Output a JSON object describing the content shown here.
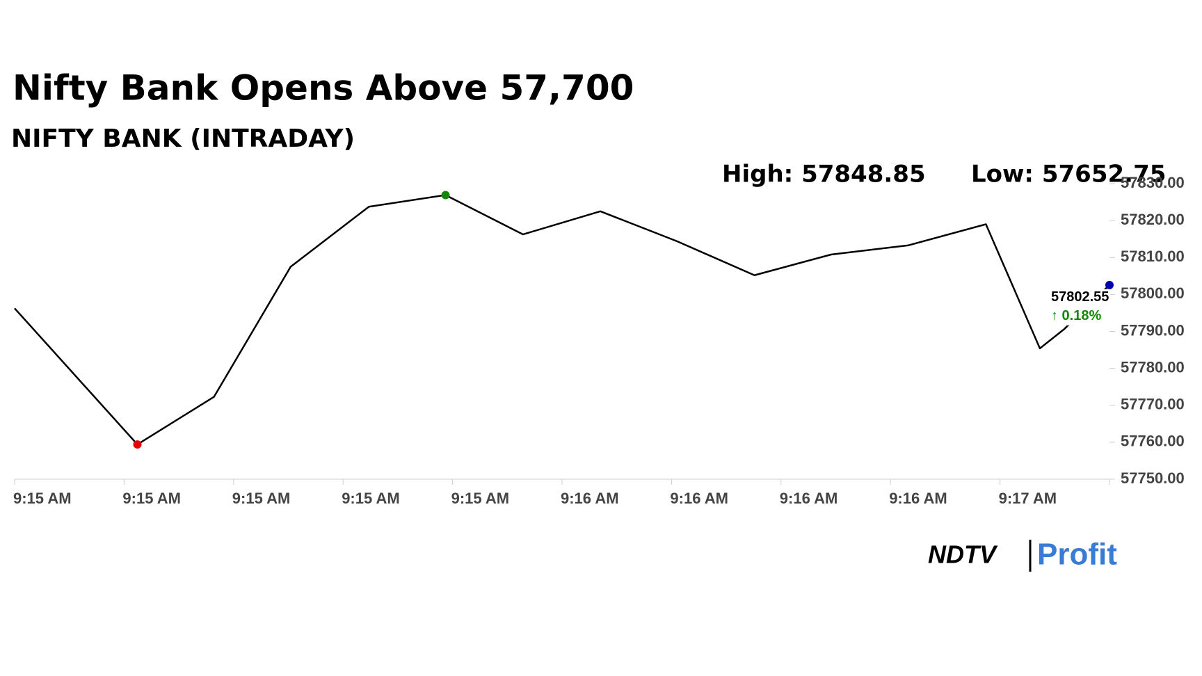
{
  "chart_data": {
    "type": "line",
    "title": "Nifty Bank Opens Above 57,700",
    "subtitle": "NIFTY BANK (INTRADAY)",
    "high_label": "High: 57848.85",
    "low_label": "Low: 57652.75",
    "last_value_label": "57802.55",
    "change_label": "↑ 0.18%",
    "x": [
      0,
      15.7,
      25.5,
      35.3,
      45.3,
      55.1,
      65,
      74.9,
      84.7,
      94.6,
      104.4,
      114.3,
      124.2,
      131.1,
      134.2,
      140
    ],
    "series": [
      {
        "name": "NIFTY BANK",
        "color": "#000000",
        "values": [
          57796.25,
          57759.4,
          57772.3,
          57807.5,
          57823.75,
          57826.9,
          57816.25,
          57822.5,
          57814.4,
          57805.2,
          57810.8,
          57813.3,
          57819.0,
          57785.4,
          57790.6,
          57802.55
        ]
      }
    ],
    "low_marker_color": "#e60000",
    "high_marker_color": "#138808",
    "last_marker_color": "#0000b0",
    "change_color": "#138808",
    "xlim": [
      0,
      140
    ],
    "xticks": [
      {
        "value": 0,
        "label": "9:15 AM"
      },
      {
        "value": 14,
        "label": "9:15 AM"
      },
      {
        "value": 28,
        "label": "9:15 AM"
      },
      {
        "value": 42,
        "label": "9:15 AM"
      },
      {
        "value": 56,
        "label": "9:15 AM"
      },
      {
        "value": 70,
        "label": "9:16 AM"
      },
      {
        "value": 84,
        "label": "9:16 AM"
      },
      {
        "value": 98,
        "label": "9:16 AM"
      },
      {
        "value": 112,
        "label": "9:16 AM"
      },
      {
        "value": 126,
        "label": "9:17 AM"
      }
    ],
    "ylim": [
      57750,
      57830
    ],
    "yticks": [
      {
        "value": 57750,
        "label": "57750.00"
      },
      {
        "value": 57760,
        "label": "57760.00"
      },
      {
        "value": 57770,
        "label": "57770.00"
      },
      {
        "value": 57780,
        "label": "57780.00"
      },
      {
        "value": 57790,
        "label": "57790.00"
      },
      {
        "value": 57800,
        "label": "57800.00"
      },
      {
        "value": 57810,
        "label": "57810.00"
      },
      {
        "value": 57820,
        "label": "57820.00"
      },
      {
        "value": 57830,
        "label": "57830.00"
      }
    ],
    "grid": false,
    "logo_left": "NDTV",
    "logo_right": "Profit"
  }
}
